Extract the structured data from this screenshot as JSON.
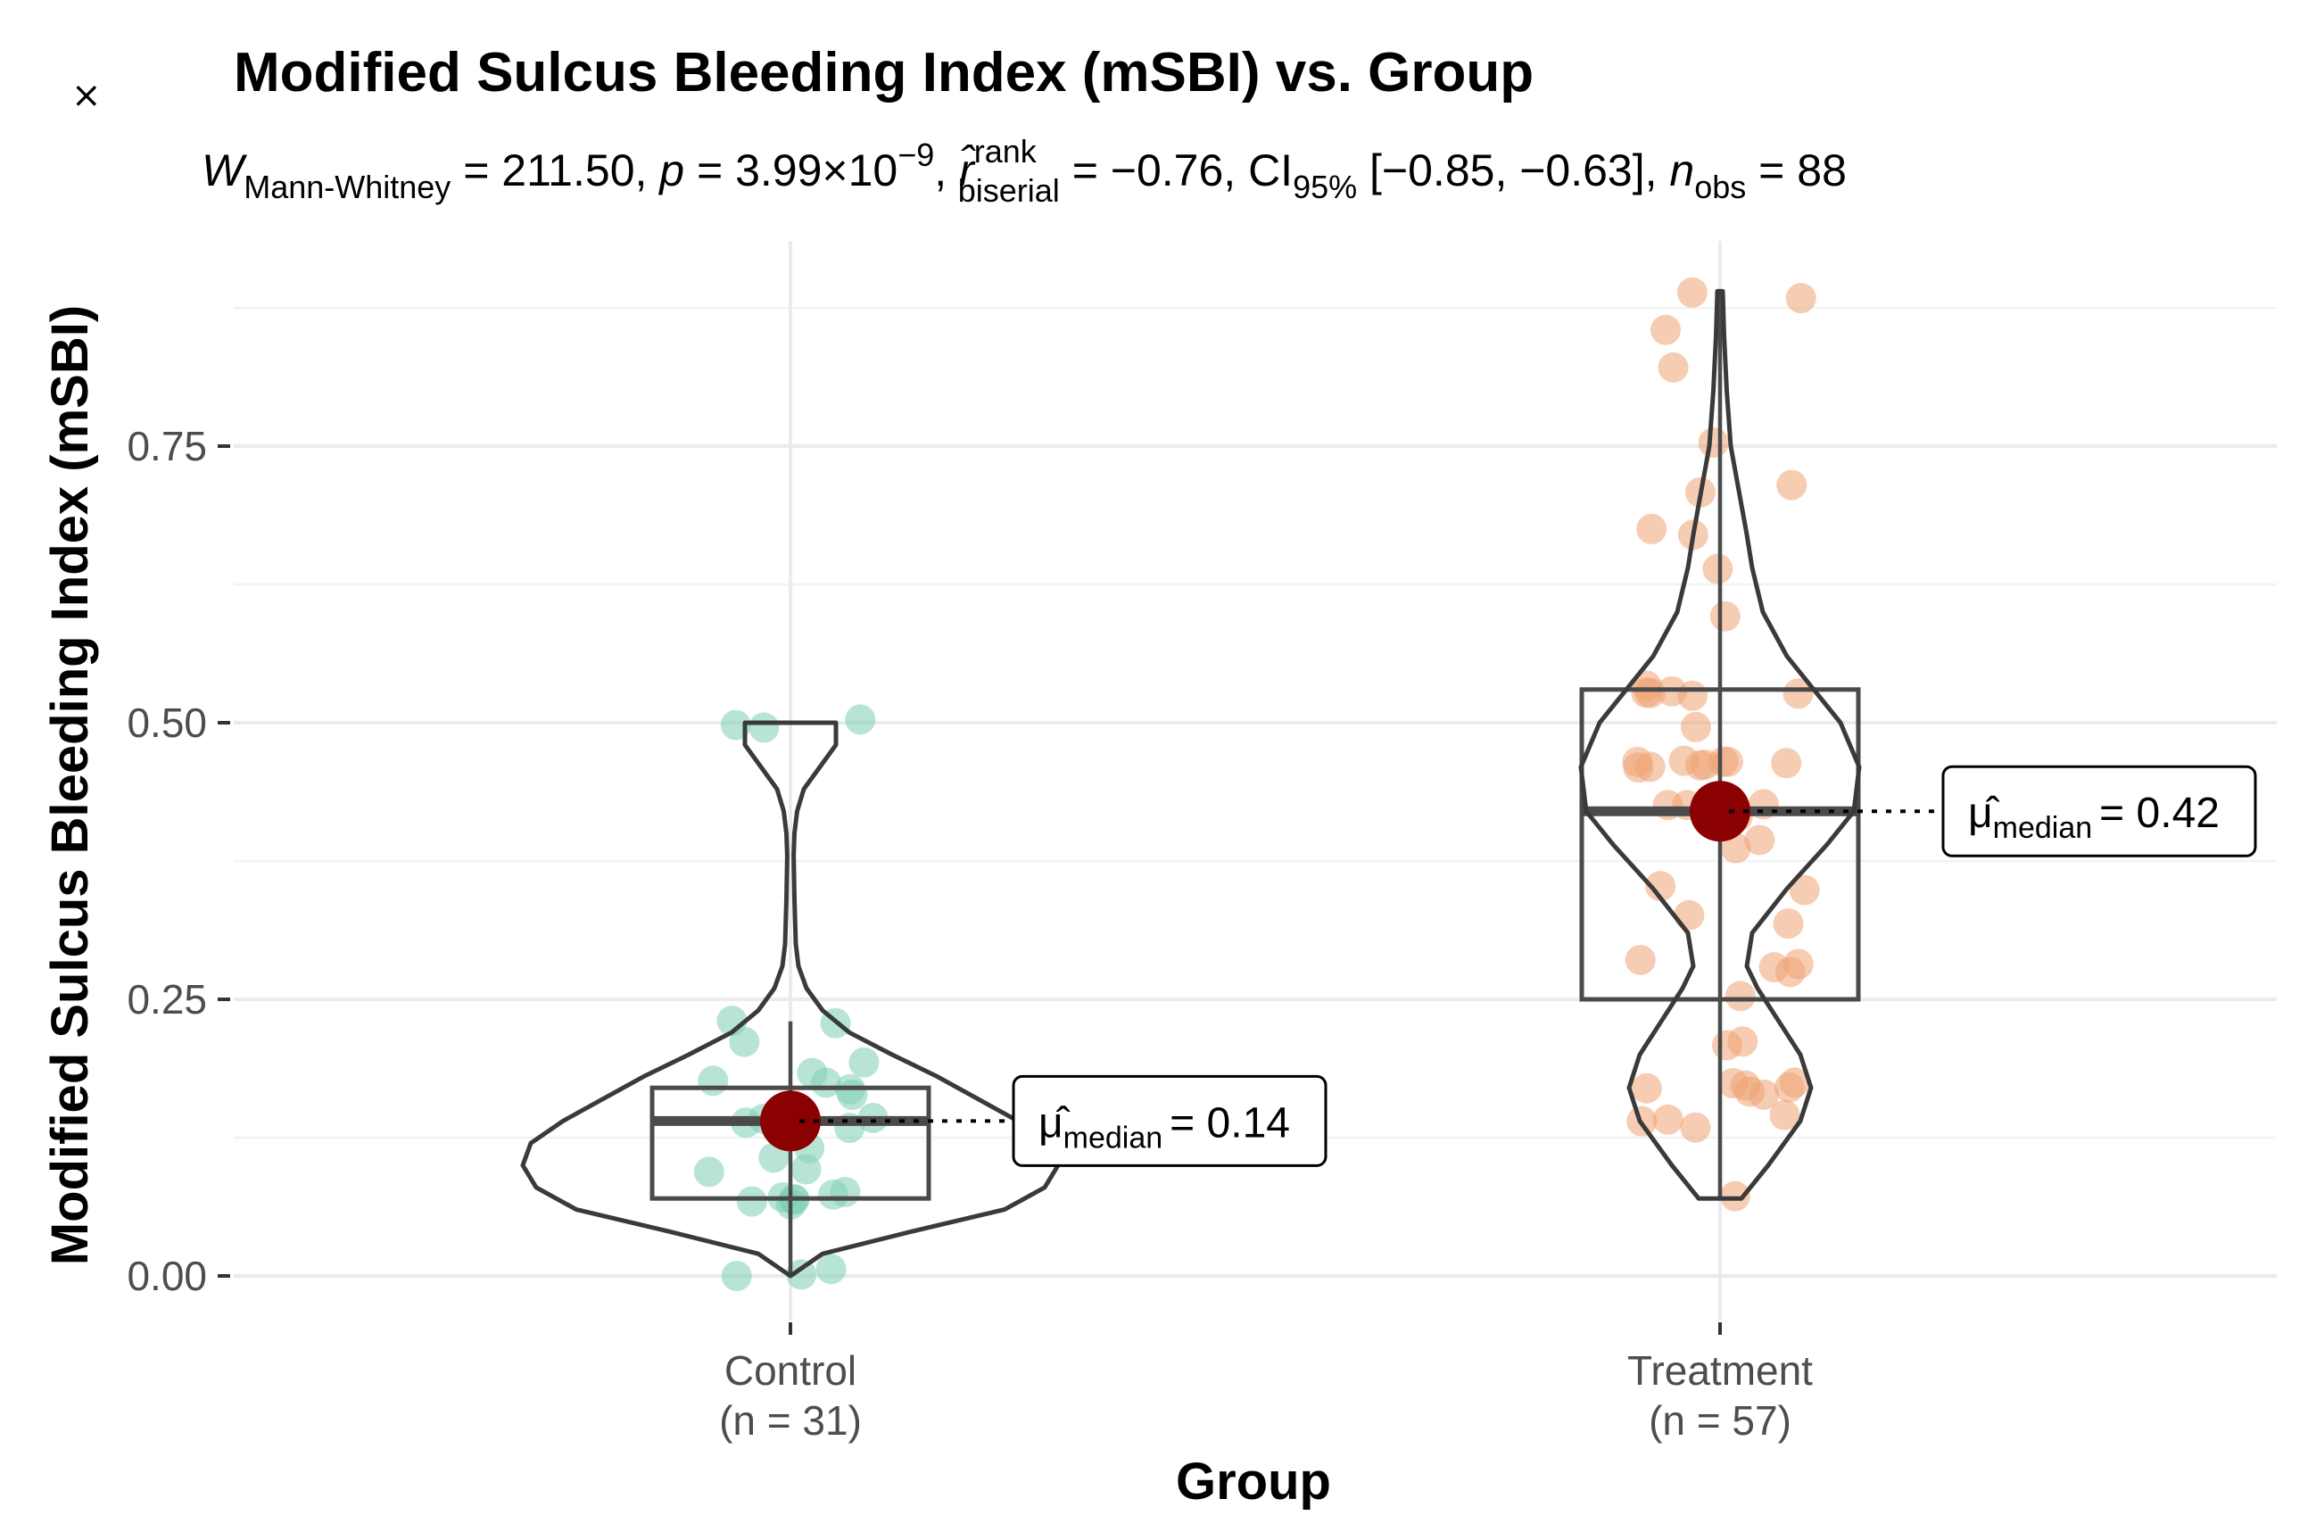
{
  "ui": {
    "close_icon": "close-icon",
    "close_glyph": "×"
  },
  "chart_data": {
    "type": "violin-box-scatter",
    "title": "Modified Sulcus Bleeding Index (mSBI) vs. Group",
    "subtitle": {
      "stat_symbol": "W",
      "stat_sub": "Mann-Whitney",
      "stat_value": " = 211.50, ",
      "p_symbol": "p",
      "p_value": " = 3.99×10",
      "p_exp": "−9",
      "effect_symbol": "r̂",
      "effect_sup": "rank",
      "effect_sub": "biserial",
      "effect_value": " = −0.76, CI",
      "ci_sub": "95%",
      "ci_value": " [−0.85, −0.63], ",
      "n_symbol": "n",
      "n_sub": "obs",
      "n_value": " = 88"
    },
    "xlabel": "Group",
    "ylabel": "Modified Sulcus Bleeding Index (mSBI)",
    "ylim": [
      -0.06,
      0.93
    ],
    "yticks": [
      0.0,
      0.25,
      0.5,
      0.75
    ],
    "ytick_labels": [
      "0.00",
      "0.25",
      "0.50",
      "0.75"
    ],
    "grid": true,
    "groups": [
      {
        "name": "Control",
        "count_label": "(n = 31)",
        "color": "#7ecdb6",
        "box": {
          "min": 0.0,
          "q1": 0.07,
          "median": 0.14,
          "q3": 0.17,
          "max": 0.23
        },
        "median_marker": 0.14,
        "median_label": "= 0.14",
        "median_symbol": "μ̂",
        "median_sub": "median",
        "violin": [
          [
            0.0,
            0.0
          ],
          [
            0.02,
            0.12
          ],
          [
            0.04,
            0.45
          ],
          [
            0.06,
            0.8
          ],
          [
            0.08,
            0.95
          ],
          [
            0.1,
            1.0
          ],
          [
            0.12,
            0.97
          ],
          [
            0.14,
            0.85
          ],
          [
            0.16,
            0.7
          ],
          [
            0.18,
            0.55
          ],
          [
            0.2,
            0.38
          ],
          [
            0.22,
            0.22
          ],
          [
            0.24,
            0.12
          ],
          [
            0.26,
            0.06
          ],
          [
            0.28,
            0.03
          ],
          [
            0.3,
            0.02
          ],
          [
            0.34,
            0.015
          ],
          [
            0.38,
            0.012
          ],
          [
            0.4,
            0.015
          ],
          [
            0.42,
            0.025
          ],
          [
            0.44,
            0.05
          ],
          [
            0.46,
            0.11
          ],
          [
            0.48,
            0.17
          ],
          [
            0.5,
            0.17
          ]
        ],
        "points": [
          0.0,
          0.0,
          0.0,
          0.07,
          0.07,
          0.07,
          0.07,
          0.07,
          0.07,
          0.07,
          0.1,
          0.1,
          0.11,
          0.11,
          0.14,
          0.14,
          0.14,
          0.14,
          0.14,
          0.17,
          0.17,
          0.17,
          0.17,
          0.18,
          0.19,
          0.21,
          0.23,
          0.23,
          0.5,
          0.5,
          0.5
        ]
      },
      {
        "name": "Treatment",
        "count_label": "(n = 57)",
        "color": "#eea373",
        "box": {
          "min": 0.07,
          "q1": 0.25,
          "median": 0.42,
          "q3": 0.53,
          "max": 0.89
        },
        "median_marker": 0.42,
        "median_label": "= 0.42",
        "median_symbol": "μ̂",
        "median_sub": "median",
        "violin": [
          [
            0.07,
            0.08
          ],
          [
            0.1,
            0.18
          ],
          [
            0.14,
            0.3
          ],
          [
            0.17,
            0.34
          ],
          [
            0.2,
            0.3
          ],
          [
            0.23,
            0.22
          ],
          [
            0.26,
            0.14
          ],
          [
            0.28,
            0.1
          ],
          [
            0.31,
            0.12
          ],
          [
            0.35,
            0.25
          ],
          [
            0.39,
            0.4
          ],
          [
            0.42,
            0.5
          ],
          [
            0.46,
            0.52
          ],
          [
            0.5,
            0.45
          ],
          [
            0.53,
            0.35
          ],
          [
            0.56,
            0.25
          ],
          [
            0.6,
            0.16
          ],
          [
            0.64,
            0.12
          ],
          [
            0.67,
            0.1
          ],
          [
            0.71,
            0.07
          ],
          [
            0.75,
            0.04
          ],
          [
            0.8,
            0.025
          ],
          [
            0.85,
            0.015
          ],
          [
            0.89,
            0.01
          ]
        ],
        "points": [
          0.07,
          0.14,
          0.14,
          0.14,
          0.14,
          0.17,
          0.17,
          0.17,
          0.17,
          0.17,
          0.17,
          0.17,
          0.21,
          0.21,
          0.25,
          0.28,
          0.28,
          0.28,
          0.28,
          0.32,
          0.32,
          0.35,
          0.35,
          0.39,
          0.39,
          0.42,
          0.42,
          0.42,
          0.42,
          0.42,
          0.46,
          0.46,
          0.46,
          0.46,
          0.46,
          0.46,
          0.46,
          0.46,
          0.46,
          0.5,
          0.53,
          0.53,
          0.53,
          0.53,
          0.53,
          0.53,
          0.6,
          0.64,
          0.67,
          0.67,
          0.71,
          0.71,
          0.75,
          0.82,
          0.85,
          0.89,
          0.89
        ]
      }
    ]
  }
}
